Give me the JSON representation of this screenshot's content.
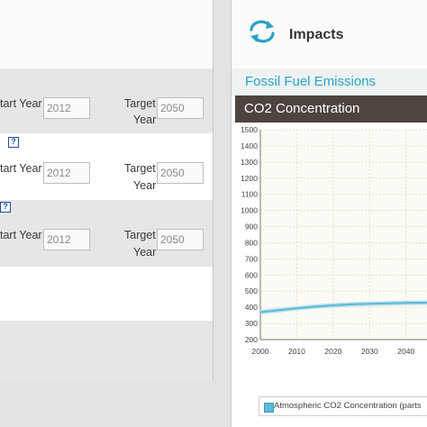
{
  "left": {
    "rows": [
      {
        "start_label": "tart Year",
        "start_value": "2012",
        "target_line1": "Target",
        "target_line2": "Year",
        "target_value": "2050"
      },
      {
        "start_label": "tart Year",
        "start_value": "2012",
        "target_line1": "Target",
        "target_line2": "Year",
        "target_value": "2050"
      },
      {
        "start_label": "tart Year",
        "start_value": "2012",
        "target_line1": "Target",
        "target_line2": "Year",
        "target_value": "2050"
      }
    ],
    "help_glyph": "?"
  },
  "right": {
    "icon": "refresh-cycle-icon",
    "title": "Impacts",
    "subtitle": "Fossil Fuel Emissions",
    "chart_header": "CO2 Concentration"
  },
  "colors": {
    "accent_teal": "#2ba2c6",
    "header_dark": "#4d4440",
    "line": "#5cb8d6"
  },
  "chart_data": {
    "type": "line",
    "title": "CO2 Concentration",
    "xlabel": "",
    "ylabel": "",
    "x_ticks": [
      "2000",
      "2010",
      "2020",
      "2030",
      "2040"
    ],
    "y_ticks": [
      "1500",
      "1400",
      "1300",
      "1200",
      "1100",
      "1000",
      "900",
      "800",
      "700",
      "600",
      "500",
      "400",
      "300",
      "200"
    ],
    "xlim": [
      2000,
      2046
    ],
    "ylim": [
      200,
      1500
    ],
    "grid": true,
    "legend_position": "bottom",
    "series": [
      {
        "name": "Atmospheric CO2 Concentration (parts",
        "x": [
          2000,
          2005,
          2010,
          2015,
          2020,
          2025,
          2030,
          2035,
          2040,
          2046
        ],
        "y": [
          370,
          382,
          394,
          404,
          412,
          418,
          422,
          425,
          427,
          429
        ]
      }
    ]
  }
}
